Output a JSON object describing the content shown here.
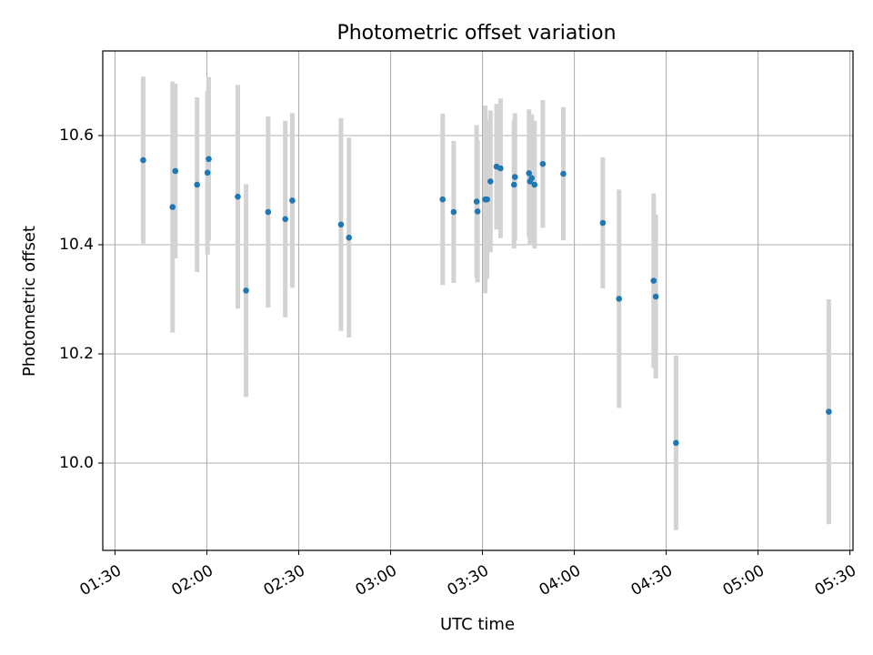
{
  "chart_data": {
    "type": "scatter",
    "title": "Photometric offset variation",
    "xlabel": "UTC time",
    "ylabel": "Photometric offset",
    "xlim_minutes": [
      86,
      331
    ],
    "ylim": [
      9.84,
      10.755
    ],
    "grid": true,
    "x_ticks": [
      {
        "minutes": 90,
        "label": "01:30"
      },
      {
        "minutes": 120,
        "label": "02:00"
      },
      {
        "minutes": 150,
        "label": "02:30"
      },
      {
        "minutes": 180,
        "label": "03:00"
      },
      {
        "minutes": 210,
        "label": "03:30"
      },
      {
        "minutes": 240,
        "label": "04:00"
      },
      {
        "minutes": 270,
        "label": "04:30"
      },
      {
        "minutes": 300,
        "label": "05:00"
      },
      {
        "minutes": 330,
        "label": "05:30"
      }
    ],
    "y_ticks": [
      {
        "value": 10.0,
        "label": "10.0"
      },
      {
        "value": 10.2,
        "label": "10.2"
      },
      {
        "value": 10.4,
        "label": "10.4"
      },
      {
        "value": 10.6,
        "label": "10.6"
      }
    ],
    "series": [
      {
        "name": "Photometric offset",
        "marker_color": "#1f77b4",
        "errorbar_color": "#d3d3d3",
        "points": [
          {
            "t": 99.2,
            "y": 10.555,
            "err": 0.153
          },
          {
            "t": 108.8,
            "y": 10.469,
            "err": 0.23
          },
          {
            "t": 109.7,
            "y": 10.535,
            "err": 0.16
          },
          {
            "t": 116.8,
            "y": 10.51,
            "err": 0.16
          },
          {
            "t": 120.2,
            "y": 10.532,
            "err": 0.15
          },
          {
            "t": 120.6,
            "y": 10.557,
            "err": 0.15
          },
          {
            "t": 130.1,
            "y": 10.488,
            "err": 0.205
          },
          {
            "t": 132.8,
            "y": 10.316,
            "err": 0.195
          },
          {
            "t": 140.0,
            "y": 10.46,
            "err": 0.175
          },
          {
            "t": 145.6,
            "y": 10.447,
            "err": 0.18
          },
          {
            "t": 147.9,
            "y": 10.481,
            "err": 0.16
          },
          {
            "t": 163.8,
            "y": 10.437,
            "err": 0.195
          },
          {
            "t": 166.4,
            "y": 10.413,
            "err": 0.183
          },
          {
            "t": 197.0,
            "y": 10.483,
            "err": 0.157
          },
          {
            "t": 200.6,
            "y": 10.46,
            "err": 0.13
          },
          {
            "t": 208.1,
            "y": 10.479,
            "err": 0.14
          },
          {
            "t": 208.4,
            "y": 10.461,
            "err": 0.13
          },
          {
            "t": 210.9,
            "y": 10.483,
            "err": 0.172
          },
          {
            "t": 211.5,
            "y": 10.483,
            "err": 0.145
          },
          {
            "t": 212.6,
            "y": 10.516,
            "err": 0.13
          },
          {
            "t": 214.6,
            "y": 10.543,
            "err": 0.115
          },
          {
            "t": 215.9,
            "y": 10.54,
            "err": 0.128
          },
          {
            "t": 220.3,
            "y": 10.51,
            "err": 0.117
          },
          {
            "t": 220.6,
            "y": 10.524,
            "err": 0.117
          },
          {
            "t": 225.2,
            "y": 10.531,
            "err": 0.117
          },
          {
            "t": 225.5,
            "y": 10.516,
            "err": 0.117
          },
          {
            "t": 226.1,
            "y": 10.522,
            "err": 0.117
          },
          {
            "t": 227.0,
            "y": 10.51,
            "err": 0.117
          },
          {
            "t": 229.7,
            "y": 10.548,
            "err": 0.117
          },
          {
            "t": 236.4,
            "y": 10.53,
            "err": 0.122
          },
          {
            "t": 249.3,
            "y": 10.44,
            "err": 0.12
          },
          {
            "t": 254.6,
            "y": 10.301,
            "err": 0.2
          },
          {
            "t": 265.9,
            "y": 10.334,
            "err": 0.16
          },
          {
            "t": 266.6,
            "y": 10.305,
            "err": 0.15
          },
          {
            "t": 273.2,
            "y": 10.037,
            "err": 0.16
          },
          {
            "t": 323.1,
            "y": 10.094,
            "err": 0.206
          }
        ]
      }
    ]
  }
}
